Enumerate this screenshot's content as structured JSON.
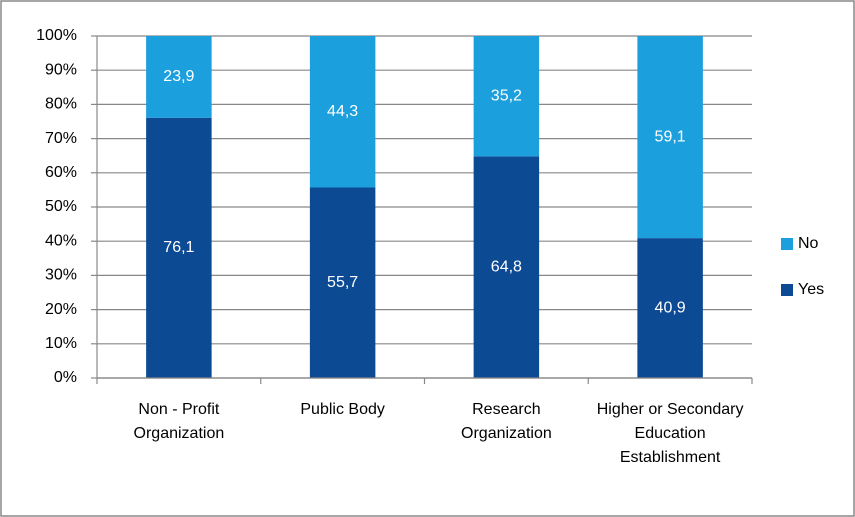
{
  "chart_data": {
    "type": "stacked_bar",
    "categories": [
      "Non - Profit Organization",
      "Public Body",
      "Research Organization",
      "Higher or Secondary Education Establishment"
    ],
    "series": [
      {
        "name": "Yes",
        "color": "#0d4a94",
        "values": [
          76.1,
          55.7,
          64.8,
          40.9
        ],
        "value_labels": [
          "76,1",
          "55,7",
          "64,8",
          "40,9"
        ]
      },
      {
        "name": "No",
        "color": "#1c9fdd",
        "values": [
          23.9,
          44.3,
          35.2,
          59.1
        ],
        "value_labels": [
          "23,9",
          "44,3",
          "35,2",
          "59,1"
        ]
      }
    ],
    "ylim": [
      0,
      100
    ],
    "yticks": [
      {
        "value": 0,
        "label": "0%"
      },
      {
        "value": 10,
        "label": "10%"
      },
      {
        "value": 20,
        "label": "20%"
      },
      {
        "value": 30,
        "label": "30%"
      },
      {
        "value": 40,
        "label": "40%"
      },
      {
        "value": 50,
        "label": "50%"
      },
      {
        "value": 60,
        "label": "60%"
      },
      {
        "value": 70,
        "label": "70%"
      },
      {
        "value": 80,
        "label": "80%"
      },
      {
        "value": 90,
        "label": "90%"
      },
      {
        "value": 100,
        "label": "100%"
      }
    ],
    "grid": true,
    "legend": "right"
  }
}
